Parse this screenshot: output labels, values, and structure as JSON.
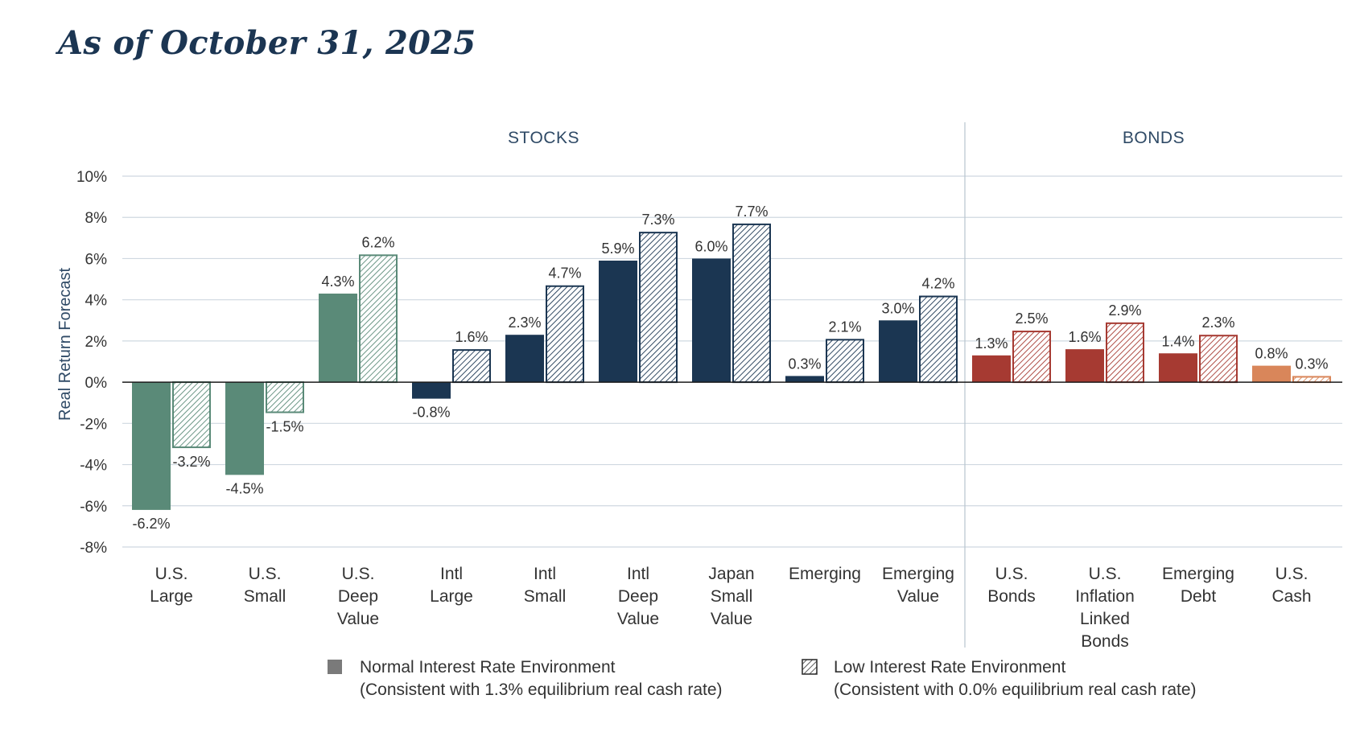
{
  "page": {
    "title": "As of October 31, 2025"
  },
  "chart_data": {
    "type": "bar",
    "ylabel": "Real Return Forecast",
    "ylim": [
      -8,
      10
    ],
    "ytick_values": [
      -8,
      -6,
      -4,
      -2,
      0,
      2,
      4,
      6,
      8,
      10
    ],
    "ytick_labels": [
      "-8%",
      "-6%",
      "-4%",
      "-2%",
      "0%",
      "2%",
      "4%",
      "6%",
      "8%",
      "10%"
    ],
    "grid": true,
    "legend_position": "bottom",
    "sections": [
      {
        "label": "STOCKS",
        "start": 0,
        "end": 8
      },
      {
        "label": "BONDS",
        "start": 9,
        "end": 12
      }
    ],
    "categories": [
      [
        "U.S.",
        "Large"
      ],
      [
        "U.S.",
        "Small"
      ],
      [
        "U.S.",
        "Deep",
        "Value"
      ],
      [
        "Intl",
        "Large"
      ],
      [
        "Intl",
        "Small"
      ],
      [
        "Intl",
        "Deep",
        "Value"
      ],
      [
        "Japan",
        "Small",
        "Value"
      ],
      [
        "Emerging"
      ],
      [
        "Emerging",
        "Value"
      ],
      [
        "U.S.",
        "Bonds"
      ],
      [
        "U.S.",
        "Inflation",
        "Linked",
        "Bonds"
      ],
      [
        "Emerging",
        "Debt"
      ],
      [
        "U.S.",
        "Cash"
      ]
    ],
    "category_colors": [
      "#5a8a78",
      "#5a8a78",
      "#5a8a78",
      "#1b3652",
      "#1b3652",
      "#1b3652",
      "#1b3652",
      "#1b3652",
      "#1b3652",
      "#a63a32",
      "#a63a32",
      "#a63a32",
      "#d9865a"
    ],
    "series": [
      {
        "name": "Normal Interest Rate Environment",
        "values": [
          -6.2,
          -4.5,
          4.3,
          -0.8,
          2.3,
          5.9,
          6.0,
          0.3,
          3.0,
          1.3,
          1.6,
          1.4,
          0.8
        ],
        "labels": [
          "-6.2%",
          "-4.5%",
          "4.3%",
          "-0.8%",
          "2.3%",
          "5.9%",
          "6.0%",
          "0.3%",
          "3.0%",
          "1.3%",
          "1.6%",
          "1.4%",
          "0.8%"
        ]
      },
      {
        "name": "Low Interest Rate Environment",
        "values": [
          -3.2,
          -1.5,
          6.2,
          1.6,
          4.7,
          7.3,
          7.7,
          2.1,
          4.2,
          2.5,
          2.9,
          2.3,
          0.3
        ],
        "labels": [
          "-3.2%",
          "-1.5%",
          "6.2%",
          "1.6%",
          "4.7%",
          "7.3%",
          "7.7%",
          "2.1%",
          "4.2%",
          "2.5%",
          "2.9%",
          "2.3%",
          "0.3%"
        ]
      }
    ],
    "legend": [
      {
        "line1": "Normal Interest Rate Environment",
        "line2": "(Consistent with 1.3% equilibrium real cash rate)",
        "swatch": "#7a7a7a"
      },
      {
        "line1": "Low Interest Rate Environment",
        "line2": "(Consistent with 0.0% equilibrium real cash rate)",
        "swatch": "hatched"
      }
    ]
  }
}
